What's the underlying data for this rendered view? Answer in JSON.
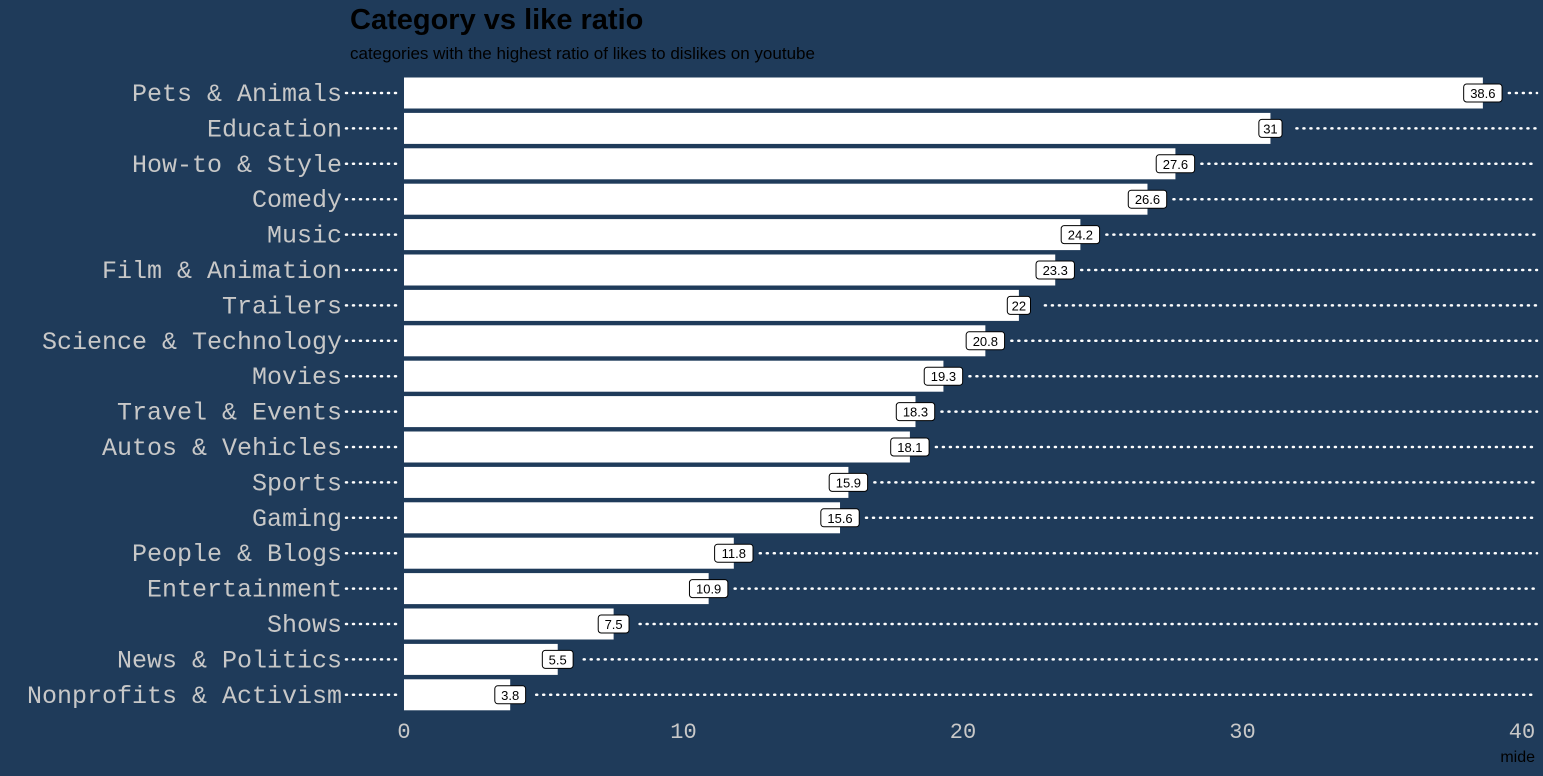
{
  "chart_data": {
    "type": "bar",
    "orientation": "horizontal",
    "title": "Category vs like ratio",
    "subtitle": "categories with the highest ratio of likes to dislikes on youtube",
    "xlabel": "mide",
    "ylabel": "",
    "xlim": [
      0,
      40
    ],
    "xticks": [
      0,
      10,
      20,
      30,
      40
    ],
    "categories": [
      "Pets & Animals",
      "Education",
      "How-to & Style",
      "Comedy",
      "Music",
      "Film & Animation",
      "Trailers",
      "Science & Technology",
      "Movies",
      "Travel & Events",
      "Autos & Vehicles",
      "Sports",
      "Gaming",
      "People & Blogs",
      "Entertainment",
      "Shows",
      "News & Politics",
      "Nonprofits & Activism"
    ],
    "values": [
      38.6,
      31,
      27.6,
      26.6,
      24.2,
      23.3,
      22,
      20.8,
      19.3,
      18.3,
      18.1,
      15.9,
      15.6,
      11.8,
      10.9,
      7.5,
      5.5,
      3.8
    ],
    "value_labels": [
      "38.6",
      "31",
      "27.6",
      "26.6",
      "24.2",
      "23.3",
      "22",
      "20.8",
      "19.3",
      "18.3",
      "18.1",
      "15.9",
      "15.6",
      "11.8",
      "10.9",
      "7.5",
      "5.5",
      "3.8"
    ],
    "grid": false,
    "legend": "none",
    "colors": {
      "background": "#1f3b5a",
      "bar": "#ffffff",
      "text": "#c8c8c8"
    }
  }
}
